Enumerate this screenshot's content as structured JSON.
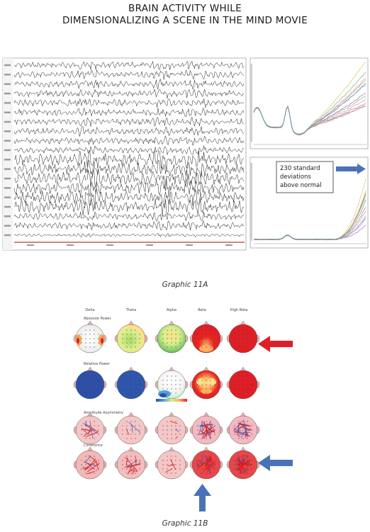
{
  "title": {
    "line1": "BRAIN ACTIVITY WHILE",
    "line2": "DIMENSIONALIZING A SCENE IN THE MIND MOVIE"
  },
  "graphic_a": {
    "caption": "Graphic 11A",
    "annotation": [
      "230 standard",
      "deviations",
      "above normal"
    ],
    "annotation_arrow_color": "#4a72b8",
    "trace_color": "#1a1a1a",
    "baseline_color": "#c0392b"
  },
  "graphic_b": {
    "caption": "Graphic 11B",
    "band_headers": [
      "Delta",
      "Theta",
      "Alpha",
      "Beta",
      "High Beta"
    ],
    "row_titles": [
      "Absolute Power",
      "Relative Power",
      "Amplitude Asymmetry",
      "Coherence"
    ],
    "arrow_colors": {
      "red": "#e01e25",
      "blue": "#4a72b8"
    }
  }
}
